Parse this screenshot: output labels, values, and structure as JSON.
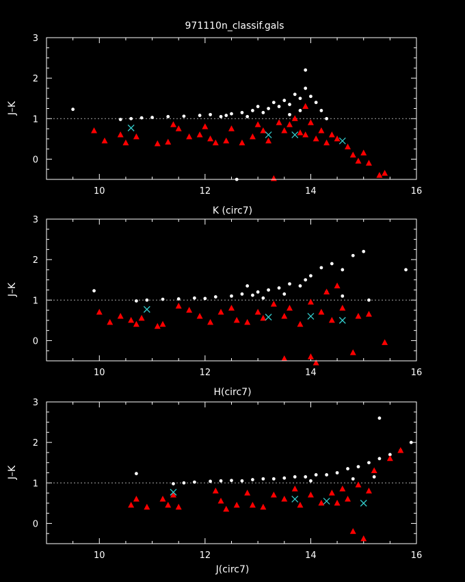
{
  "title": "971110n_classif.gals",
  "colors": {
    "background": "#000000",
    "axes": "#ffffff",
    "stars": "#ffffff",
    "galaxies": "#ff0000",
    "crosses": "#33cccc",
    "yellow": "#ffff66",
    "reference_line": "#aaaaaa"
  },
  "chart_data": [
    {
      "type": "scatter",
      "xlabel": "K (circ7)",
      "ylabel": "J–K",
      "xlim": [
        9,
        16
      ],
      "ylim": [
        -0.5,
        3
      ],
      "xticks": [
        10,
        12,
        14,
        16
      ],
      "yticks": [
        0,
        1,
        2,
        3
      ],
      "reference_line_y": 1,
      "series": [
        {
          "marker": "dot",
          "color": "white",
          "points": [
            [
              9.5,
              1.23
            ],
            [
              10.4,
              0.98
            ],
            [
              10.6,
              1.0
            ],
            [
              10.8,
              1.02
            ],
            [
              11.0,
              1.03
            ],
            [
              11.3,
              1.05
            ],
            [
              11.6,
              1.06
            ],
            [
              11.9,
              1.08
            ],
            [
              12.1,
              1.1
            ],
            [
              12.3,
              1.05
            ],
            [
              12.5,
              1.12
            ],
            [
              12.7,
              1.15
            ],
            [
              12.9,
              1.2
            ],
            [
              13.0,
              1.3
            ],
            [
              13.2,
              1.25
            ],
            [
              13.3,
              1.4
            ],
            [
              13.4,
              1.3
            ],
            [
              13.5,
              1.45
            ],
            [
              13.6,
              1.35
            ],
            [
              13.7,
              1.6
            ],
            [
              13.8,
              1.5
            ],
            [
              13.9,
              1.75
            ],
            [
              14.0,
              1.55
            ],
            [
              13.9,
              2.2
            ],
            [
              14.1,
              1.4
            ],
            [
              14.2,
              1.2
            ],
            [
              13.1,
              1.15
            ],
            [
              12.8,
              1.05
            ],
            [
              12.4,
              1.08
            ],
            [
              13.6,
              1.1
            ],
            [
              13.8,
              1.2
            ],
            [
              14.3,
              1.0
            ],
            [
              12.6,
              -0.5
            ]
          ]
        },
        {
          "marker": "triangle",
          "color": "red",
          "points": [
            [
              9.9,
              0.7
            ],
            [
              10.1,
              0.45
            ],
            [
              10.4,
              0.6
            ],
            [
              10.5,
              0.4
            ],
            [
              10.7,
              0.55
            ],
            [
              11.1,
              0.38
            ],
            [
              11.3,
              0.42
            ],
            [
              11.4,
              0.85
            ],
            [
              11.5,
              0.75
            ],
            [
              11.7,
              0.55
            ],
            [
              11.9,
              0.6
            ],
            [
              12.0,
              0.8
            ],
            [
              12.1,
              0.5
            ],
            [
              12.2,
              0.4
            ],
            [
              12.4,
              0.45
            ],
            [
              12.5,
              0.75
            ],
            [
              12.7,
              0.4
            ],
            [
              12.9,
              0.55
            ],
            [
              13.0,
              0.85
            ],
            [
              13.1,
              0.7
            ],
            [
              13.2,
              0.45
            ],
            [
              13.3,
              -0.48
            ],
            [
              13.4,
              0.9
            ],
            [
              13.5,
              0.7
            ],
            [
              13.6,
              0.85
            ],
            [
              13.7,
              1.0
            ],
            [
              13.8,
              0.65
            ],
            [
              13.9,
              1.3
            ],
            [
              13.9,
              0.6
            ],
            [
              14.0,
              0.9
            ],
            [
              14.1,
              0.5
            ],
            [
              14.2,
              0.7
            ],
            [
              14.3,
              0.4
            ],
            [
              14.4,
              0.6
            ],
            [
              14.5,
              0.5
            ],
            [
              14.7,
              0.3
            ],
            [
              14.8,
              0.1
            ],
            [
              14.9,
              -0.05
            ],
            [
              15.0,
              0.15
            ],
            [
              15.1,
              -0.1
            ],
            [
              15.3,
              -0.4
            ],
            [
              15.4,
              -0.35
            ]
          ]
        },
        {
          "marker": "cross",
          "color": "cyan",
          "points": [
            [
              10.6,
              0.77
            ],
            [
              13.2,
              0.6
            ],
            [
              13.7,
              0.6
            ],
            [
              14.6,
              0.45
            ]
          ]
        }
      ]
    },
    {
      "type": "scatter",
      "xlabel": "H(circ7)",
      "ylabel": "J–K",
      "xlim": [
        9,
        16
      ],
      "ylim": [
        -0.5,
        3
      ],
      "xticks": [
        10,
        12,
        14,
        16
      ],
      "yticks": [
        0,
        1,
        2,
        3
      ],
      "reference_line_y": 1,
      "series": [
        {
          "marker": "dot",
          "color": "white",
          "points": [
            [
              9.9,
              1.23
            ],
            [
              10.7,
              0.98
            ],
            [
              10.9,
              1.0
            ],
            [
              11.2,
              1.02
            ],
            [
              11.5,
              1.03
            ],
            [
              11.8,
              1.05
            ],
            [
              12.0,
              1.04
            ],
            [
              12.2,
              1.08
            ],
            [
              12.5,
              1.1
            ],
            [
              12.7,
              1.15
            ],
            [
              12.9,
              1.12
            ],
            [
              13.0,
              1.2
            ],
            [
              13.2,
              1.25
            ],
            [
              13.4,
              1.3
            ],
            [
              13.5,
              1.15
            ],
            [
              13.6,
              1.4
            ],
            [
              13.8,
              1.35
            ],
            [
              13.9,
              1.5
            ],
            [
              14.0,
              1.6
            ],
            [
              14.2,
              1.8
            ],
            [
              14.4,
              1.9
            ],
            [
              14.6,
              1.75
            ],
            [
              14.8,
              2.1
            ],
            [
              15.0,
              2.2
            ],
            [
              15.8,
              1.75
            ],
            [
              13.1,
              1.05
            ],
            [
              12.8,
              1.35
            ],
            [
              14.3,
              1.2
            ],
            [
              14.6,
              1.1
            ],
            [
              15.1,
              1.0
            ]
          ]
        },
        {
          "marker": "triangle",
          "color": "red",
          "points": [
            [
              10.0,
              0.7
            ],
            [
              10.2,
              0.45
            ],
            [
              10.4,
              0.6
            ],
            [
              10.6,
              0.5
            ],
            [
              10.7,
              0.4
            ],
            [
              10.8,
              0.55
            ],
            [
              11.1,
              0.35
            ],
            [
              11.2,
              0.4
            ],
            [
              11.5,
              0.85
            ],
            [
              11.7,
              0.75
            ],
            [
              11.9,
              0.6
            ],
            [
              12.1,
              0.45
            ],
            [
              12.3,
              0.7
            ],
            [
              12.5,
              0.8
            ],
            [
              12.6,
              0.5
            ],
            [
              12.8,
              0.45
            ],
            [
              13.0,
              0.7
            ],
            [
              13.1,
              0.55
            ],
            [
              13.3,
              0.9
            ],
            [
              13.5,
              -0.45
            ],
            [
              13.5,
              0.6
            ],
            [
              13.6,
              0.8
            ],
            [
              13.8,
              0.4
            ],
            [
              14.0,
              -0.4
            ],
            [
              14.0,
              0.95
            ],
            [
              14.1,
              -0.55
            ],
            [
              14.2,
              0.7
            ],
            [
              14.3,
              1.2
            ],
            [
              14.4,
              0.5
            ],
            [
              14.5,
              1.35
            ],
            [
              14.6,
              0.8
            ],
            [
              14.8,
              -0.3
            ],
            [
              14.9,
              0.6
            ],
            [
              15.1,
              0.65
            ],
            [
              15.4,
              -0.05
            ]
          ]
        },
        {
          "marker": "cross",
          "color": "cyan",
          "points": [
            [
              10.9,
              0.77
            ],
            [
              13.2,
              0.58
            ],
            [
              14.0,
              0.6
            ],
            [
              14.6,
              0.5
            ]
          ]
        }
      ]
    },
    {
      "type": "scatter",
      "xlabel": "J(circ7)",
      "ylabel": "J–K",
      "xlim": [
        9,
        16
      ],
      "ylim": [
        -0.5,
        3
      ],
      "xticks": [
        10,
        12,
        14,
        16
      ],
      "yticks": [
        0,
        1,
        2,
        3
      ],
      "reference_line_y": 1,
      "series": [
        {
          "marker": "dot",
          "color": "white",
          "points": [
            [
              10.7,
              1.23
            ],
            [
              11.4,
              0.98
            ],
            [
              11.6,
              1.0
            ],
            [
              11.8,
              1.02
            ],
            [
              12.1,
              1.04
            ],
            [
              12.3,
              1.05
            ],
            [
              12.5,
              1.06
            ],
            [
              12.7,
              1.05
            ],
            [
              12.9,
              1.08
            ],
            [
              13.1,
              1.1
            ],
            [
              13.3,
              1.1
            ],
            [
              13.5,
              1.12
            ],
            [
              13.7,
              1.15
            ],
            [
              13.9,
              1.15
            ],
            [
              14.1,
              1.2
            ],
            [
              14.3,
              1.2
            ],
            [
              14.5,
              1.25
            ],
            [
              14.7,
              1.35
            ],
            [
              14.9,
              1.4
            ],
            [
              15.1,
              1.5
            ],
            [
              15.3,
              1.6
            ],
            [
              15.5,
              1.7
            ],
            [
              15.7,
              1.8
            ],
            [
              15.9,
              2.0
            ],
            [
              15.3,
              2.6
            ],
            [
              14.0,
              1.05
            ],
            [
              14.8,
              1.1
            ],
            [
              15.2,
              1.15
            ]
          ]
        },
        {
          "marker": "triangle",
          "color": "red",
          "points": [
            [
              10.6,
              0.45
            ],
            [
              10.7,
              0.6
            ],
            [
              10.9,
              0.4
            ],
            [
              11.2,
              0.6
            ],
            [
              11.3,
              0.45
            ],
            [
              11.4,
              0.7
            ],
            [
              11.5,
              0.4
            ],
            [
              12.2,
              0.8
            ],
            [
              12.3,
              0.55
            ],
            [
              12.4,
              0.35
            ],
            [
              12.6,
              0.45
            ],
            [
              12.8,
              0.75
            ],
            [
              12.9,
              0.45
            ],
            [
              13.1,
              0.4
            ],
            [
              13.3,
              0.7
            ],
            [
              13.5,
              0.6
            ],
            [
              13.7,
              0.85
            ],
            [
              13.8,
              0.45
            ],
            [
              14.0,
              0.7
            ],
            [
              14.2,
              0.5
            ],
            [
              14.4,
              0.75
            ],
            [
              14.5,
              0.5
            ],
            [
              14.6,
              0.85
            ],
            [
              14.7,
              0.6
            ],
            [
              14.8,
              -0.2
            ],
            [
              14.9,
              0.95
            ],
            [
              15.0,
              -0.38
            ],
            [
              15.1,
              0.8
            ],
            [
              15.2,
              1.3
            ],
            [
              15.5,
              1.6
            ],
            [
              15.7,
              1.8
            ]
          ]
        },
        {
          "marker": "cross",
          "color": "cyan",
          "points": [
            [
              11.4,
              0.77
            ],
            [
              13.7,
              0.6
            ],
            [
              14.3,
              0.55
            ],
            [
              15.0,
              0.5
            ]
          ]
        }
      ]
    }
  ]
}
